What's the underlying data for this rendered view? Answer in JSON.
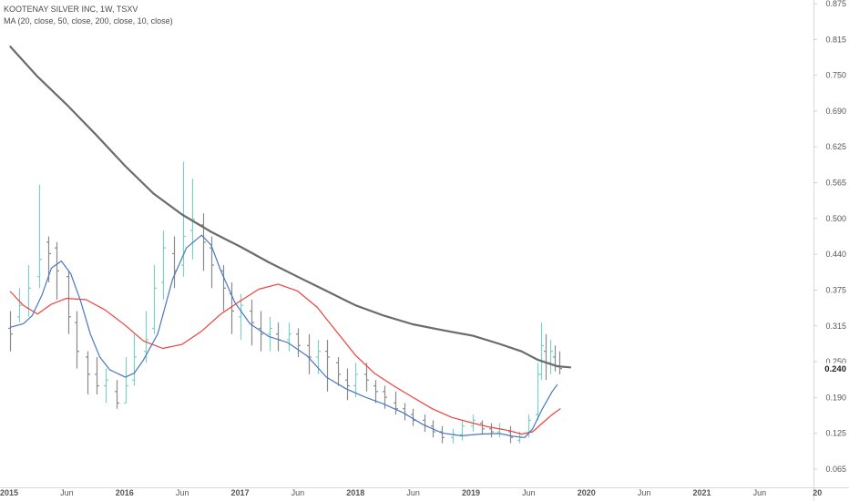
{
  "legend": {
    "title": "KOOTENAY SILVER INC, 1W, TSXV",
    "indicator": "MA (20, close, 50, close, 200, close, 10, close)"
  },
  "colors": {
    "up_bar": "#7ecfc6",
    "down_bar": "#8a8a8a",
    "ma20": "#4a78c2",
    "ma50": "#ef4040",
    "ma200": "#6b6b6b",
    "axis_text": "#555555",
    "label_bg": "#ffffff"
  },
  "chart_data": {
    "type": "line",
    "price_axis_ticks": [
      "0.875",
      "0.815",
      "0.750",
      "0.690",
      "0.625",
      "0.565",
      "0.500",
      "0.440",
      "0.375",
      "0.315",
      "0.250",
      "0.190",
      "0.125",
      "0.065"
    ],
    "time_axis_labels": [
      "2015",
      "Jun",
      "2016",
      "Jun",
      "2017",
      "Jun",
      "2018",
      "Jun",
      "2019",
      "Jun",
      "2020",
      "Jun",
      "2021",
      "Jun",
      "20"
    ],
    "last_price_label": "0.240",
    "series": [
      {
        "key": "ma200",
        "values": [
          [
            "2015-01-05",
            0.8
          ],
          [
            "2015-04-01",
            0.748
          ],
          [
            "2015-07-01",
            0.7
          ],
          [
            "2015-10-01",
            0.648
          ],
          [
            "2016-01-04",
            0.592
          ],
          [
            "2016-04-01",
            0.545
          ],
          [
            "2016-07-01",
            0.508
          ],
          [
            "2016-10-01",
            0.478
          ],
          [
            "2017-01-02",
            0.452
          ],
          [
            "2017-04-01",
            0.425
          ],
          [
            "2017-07-01",
            0.4
          ],
          [
            "2017-10-01",
            0.375
          ],
          [
            "2018-01-01",
            0.35
          ],
          [
            "2018-04-01",
            0.332
          ],
          [
            "2018-07-01",
            0.317
          ],
          [
            "2018-10-01",
            0.307
          ],
          [
            "2019-01-07",
            0.297
          ],
          [
            "2019-04-01",
            0.283
          ],
          [
            "2019-06-10",
            0.27
          ],
          [
            "2019-08-01",
            0.255
          ],
          [
            "2019-10-01",
            0.244
          ],
          [
            "2019-11-11",
            0.242
          ]
        ]
      },
      {
        "key": "ma50",
        "values": [
          [
            "2015-01-05",
            0.374
          ],
          [
            "2015-02-15",
            0.35
          ],
          [
            "2015-04-01",
            0.335
          ],
          [
            "2015-05-15",
            0.352
          ],
          [
            "2015-07-01",
            0.362
          ],
          [
            "2015-09-01",
            0.36
          ],
          [
            "2015-11-01",
            0.342
          ],
          [
            "2016-01-04",
            0.315
          ],
          [
            "2016-03-01",
            0.288
          ],
          [
            "2016-05-01",
            0.275
          ],
          [
            "2016-07-01",
            0.282
          ],
          [
            "2016-09-01",
            0.305
          ],
          [
            "2016-11-01",
            0.335
          ],
          [
            "2017-01-02",
            0.358
          ],
          [
            "2017-03-01",
            0.378
          ],
          [
            "2017-05-01",
            0.387
          ],
          [
            "2017-07-01",
            0.375
          ],
          [
            "2017-09-01",
            0.347
          ],
          [
            "2017-11-01",
            0.305
          ],
          [
            "2018-01-01",
            0.263
          ],
          [
            "2018-03-01",
            0.232
          ],
          [
            "2018-05-01",
            0.21
          ],
          [
            "2018-07-01",
            0.19
          ],
          [
            "2018-09-01",
            0.17
          ],
          [
            "2018-11-01",
            0.155
          ],
          [
            "2019-01-07",
            0.145
          ],
          [
            "2019-03-01",
            0.138
          ],
          [
            "2019-05-01",
            0.132
          ],
          [
            "2019-06-10",
            0.126
          ],
          [
            "2019-07-15",
            0.13
          ],
          [
            "2019-08-15",
            0.145
          ],
          [
            "2019-09-15",
            0.16
          ],
          [
            "2019-10-10",
            0.17
          ]
        ]
      },
      {
        "key": "ma20",
        "values": [
          [
            "2015-01-05",
            0.312
          ],
          [
            "2015-02-15",
            0.318
          ],
          [
            "2015-03-15",
            0.332
          ],
          [
            "2015-04-15",
            0.368
          ],
          [
            "2015-05-15",
            0.415
          ],
          [
            "2015-06-15",
            0.427
          ],
          [
            "2015-07-15",
            0.405
          ],
          [
            "2015-08-15",
            0.358
          ],
          [
            "2015-09-15",
            0.3
          ],
          [
            "2015-10-15",
            0.26
          ],
          [
            "2015-11-15",
            0.238
          ],
          [
            "2016-01-04",
            0.225
          ],
          [
            "2016-02-01",
            0.232
          ],
          [
            "2016-03-01",
            0.255
          ],
          [
            "2016-04-15",
            0.3
          ],
          [
            "2016-06-01",
            0.395
          ],
          [
            "2016-07-15",
            0.45
          ],
          [
            "2016-09-01",
            0.472
          ],
          [
            "2016-10-01",
            0.455
          ],
          [
            "2016-11-01",
            0.41
          ],
          [
            "2016-12-15",
            0.355
          ],
          [
            "2017-02-01",
            0.318
          ],
          [
            "2017-04-01",
            0.296
          ],
          [
            "2017-06-01",
            0.285
          ],
          [
            "2017-08-01",
            0.262
          ],
          [
            "2017-10-01",
            0.225
          ],
          [
            "2017-12-01",
            0.205
          ],
          [
            "2018-02-01",
            0.19
          ],
          [
            "2018-04-01",
            0.178
          ],
          [
            "2018-06-01",
            0.163
          ],
          [
            "2018-08-01",
            0.143
          ],
          [
            "2018-10-01",
            0.128
          ],
          [
            "2018-12-01",
            0.123
          ],
          [
            "2019-02-01",
            0.126
          ],
          [
            "2019-04-01",
            0.127
          ],
          [
            "2019-05-15",
            0.122
          ],
          [
            "2019-06-20",
            0.12
          ],
          [
            "2019-07-15",
            0.135
          ],
          [
            "2019-08-15",
            0.17
          ],
          [
            "2019-09-15",
            0.2
          ],
          [
            "2019-10-01",
            0.212
          ]
        ]
      }
    ],
    "price_bars": [
      [
        "2015-01-05",
        0.31,
        0.3,
        0.34,
        0.27
      ],
      [
        "2015-02-02",
        0.33,
        0.35,
        0.38,
        0.32
      ],
      [
        "2015-03-02",
        0.345,
        0.38,
        0.42,
        0.33
      ],
      [
        "2015-04-06",
        0.4,
        0.43,
        0.56,
        0.38
      ],
      [
        "2015-05-04",
        0.46,
        0.44,
        0.47,
        0.39
      ],
      [
        "2015-06-01",
        0.45,
        0.41,
        0.46,
        0.36
      ],
      [
        "2015-07-06",
        0.4,
        0.33,
        0.41,
        0.3
      ],
      [
        "2015-08-03",
        0.32,
        0.27,
        0.34,
        0.24
      ],
      [
        "2015-09-07",
        0.26,
        0.23,
        0.27,
        0.195
      ],
      [
        "2015-10-05",
        0.23,
        0.21,
        0.26,
        0.195
      ],
      [
        "2015-11-02",
        0.21,
        0.22,
        0.24,
        0.18
      ],
      [
        "2015-12-07",
        0.2,
        0.18,
        0.22,
        0.17
      ],
      [
        "2016-01-04",
        0.18,
        0.21,
        0.26,
        0.18
      ],
      [
        "2016-02-01",
        0.22,
        0.26,
        0.3,
        0.21
      ],
      [
        "2016-03-07",
        0.27,
        0.29,
        0.34,
        0.25
      ],
      [
        "2016-04-04",
        0.31,
        0.38,
        0.42,
        0.3
      ],
      [
        "2016-05-02",
        0.39,
        0.45,
        0.48,
        0.36
      ],
      [
        "2016-06-06",
        0.44,
        0.41,
        0.47,
        0.38
      ],
      [
        "2016-07-04",
        0.42,
        0.47,
        0.6,
        0.4
      ],
      [
        "2016-08-01",
        0.48,
        0.5,
        0.57,
        0.43
      ],
      [
        "2016-09-05",
        0.49,
        0.46,
        0.51,
        0.41
      ],
      [
        "2016-10-03",
        0.45,
        0.42,
        0.47,
        0.38
      ],
      [
        "2016-11-07",
        0.41,
        0.38,
        0.42,
        0.34
      ],
      [
        "2016-12-05",
        0.37,
        0.34,
        0.39,
        0.3
      ],
      [
        "2017-01-02",
        0.33,
        0.35,
        0.37,
        0.29
      ],
      [
        "2017-02-06",
        0.34,
        0.32,
        0.36,
        0.28
      ],
      [
        "2017-03-06",
        0.31,
        0.3,
        0.34,
        0.27
      ],
      [
        "2017-04-03",
        0.3,
        0.31,
        0.33,
        0.27
      ],
      [
        "2017-05-01",
        0.3,
        0.29,
        0.32,
        0.27
      ],
      [
        "2017-06-05",
        0.29,
        0.3,
        0.32,
        0.27
      ],
      [
        "2017-07-03",
        0.3,
        0.28,
        0.31,
        0.26
      ],
      [
        "2017-08-07",
        0.28,
        0.26,
        0.3,
        0.23
      ],
      [
        "2017-09-04",
        0.26,
        0.27,
        0.29,
        0.23
      ],
      [
        "2017-10-02",
        0.27,
        0.26,
        0.29,
        0.2
      ],
      [
        "2017-11-06",
        0.25,
        0.23,
        0.26,
        0.21
      ],
      [
        "2017-12-04",
        0.22,
        0.21,
        0.24,
        0.185
      ],
      [
        "2018-01-01",
        0.21,
        0.23,
        0.25,
        0.19
      ],
      [
        "2018-02-05",
        0.23,
        0.22,
        0.25,
        0.2
      ],
      [
        "2018-03-05",
        0.21,
        0.2,
        0.22,
        0.18
      ],
      [
        "2018-04-02",
        0.2,
        0.19,
        0.21,
        0.17
      ],
      [
        "2018-05-07",
        0.18,
        0.17,
        0.2,
        0.16
      ],
      [
        "2018-06-04",
        0.17,
        0.16,
        0.18,
        0.15
      ],
      [
        "2018-07-02",
        0.16,
        0.15,
        0.17,
        0.14
      ],
      [
        "2018-08-06",
        0.15,
        0.14,
        0.16,
        0.13
      ],
      [
        "2018-09-03",
        0.14,
        0.13,
        0.15,
        0.12
      ],
      [
        "2018-10-01",
        0.13,
        0.12,
        0.14,
        0.11
      ],
      [
        "2018-11-05",
        0.12,
        0.125,
        0.135,
        0.11
      ],
      [
        "2018-12-03",
        0.125,
        0.14,
        0.15,
        0.115
      ],
      [
        "2019-01-07",
        0.14,
        0.15,
        0.16,
        0.13
      ],
      [
        "2019-02-04",
        0.145,
        0.135,
        0.15,
        0.125
      ],
      [
        "2019-03-04",
        0.135,
        0.13,
        0.145,
        0.12
      ],
      [
        "2019-04-01",
        0.13,
        0.135,
        0.145,
        0.12
      ],
      [
        "2019-05-06",
        0.13,
        0.12,
        0.14,
        0.11
      ],
      [
        "2019-06-03",
        0.115,
        0.12,
        0.13,
        0.11
      ],
      [
        "2019-07-01",
        0.125,
        0.15,
        0.16,
        0.12
      ],
      [
        "2019-07-29",
        0.16,
        0.23,
        0.25,
        0.15
      ],
      [
        "2019-08-12",
        0.23,
        0.28,
        0.32,
        0.22
      ],
      [
        "2019-08-26",
        0.27,
        0.25,
        0.3,
        0.22
      ],
      [
        "2019-09-09",
        0.25,
        0.27,
        0.29,
        0.23
      ],
      [
        "2019-09-23",
        0.26,
        0.245,
        0.28,
        0.235
      ],
      [
        "2019-10-07",
        0.245,
        0.24,
        0.27,
        0.23
      ]
    ]
  }
}
